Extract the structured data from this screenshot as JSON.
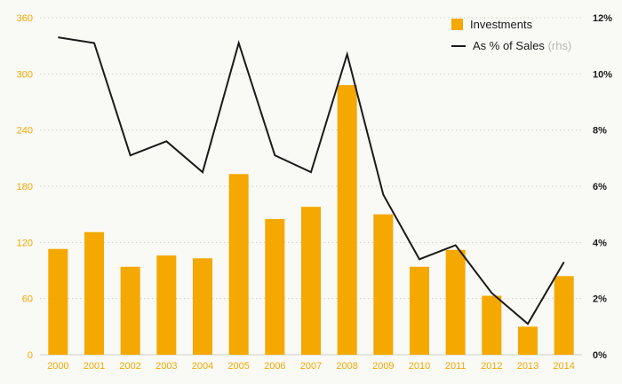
{
  "chart_data": {
    "type": "bar",
    "title": "",
    "categories": [
      "2000",
      "2001",
      "2002",
      "2003",
      "2004",
      "2005",
      "2006",
      "2007",
      "2008",
      "2009",
      "2010",
      "2011",
      "2012",
      "2013",
      "2014"
    ],
    "series": [
      {
        "name": "Investments",
        "type": "bar",
        "axis": "left",
        "color": "#F5A800",
        "values": [
          113,
          131,
          94,
          106,
          103,
          193,
          145,
          158,
          288,
          150,
          94,
          112,
          63,
          30,
          84
        ]
      },
      {
        "name": "As % of Sales",
        "type": "line",
        "axis": "right",
        "color": "#1a1a1a",
        "values": [
          11.3,
          11.1,
          7.1,
          7.6,
          6.5,
          11.1,
          7.1,
          6.5,
          10.7,
          5.7,
          3.4,
          3.9,
          2.2,
          1.1,
          3.3
        ]
      }
    ],
    "left_axis": {
      "min": 0,
      "max": 360,
      "step": 60,
      "labels": [
        "0",
        "60",
        "120",
        "180",
        "240",
        "300",
        "360"
      ],
      "color": "#F5A800"
    },
    "right_axis": {
      "min": 0,
      "max": 12,
      "step": 2,
      "labels": [
        "0%",
        "2%",
        "4%",
        "6%",
        "8%",
        "10%",
        "12%"
      ],
      "color": "#1a1a1a"
    },
    "legend": [
      {
        "label": "Investments",
        "suffix": "",
        "marker": "square",
        "color": "#F5A800"
      },
      {
        "label": "As % of Sales",
        "suffix": "(rhs)",
        "marker": "line",
        "color": "#1a1a1a"
      }
    ],
    "grid": true,
    "legend_position": "top-right"
  },
  "colors": {
    "background": "#f9f9f6",
    "grid": "#cfcfca",
    "baseline": "#cfcfca",
    "x_text": "#F5A800",
    "rhs_suffix": "#b8b8b2"
  }
}
